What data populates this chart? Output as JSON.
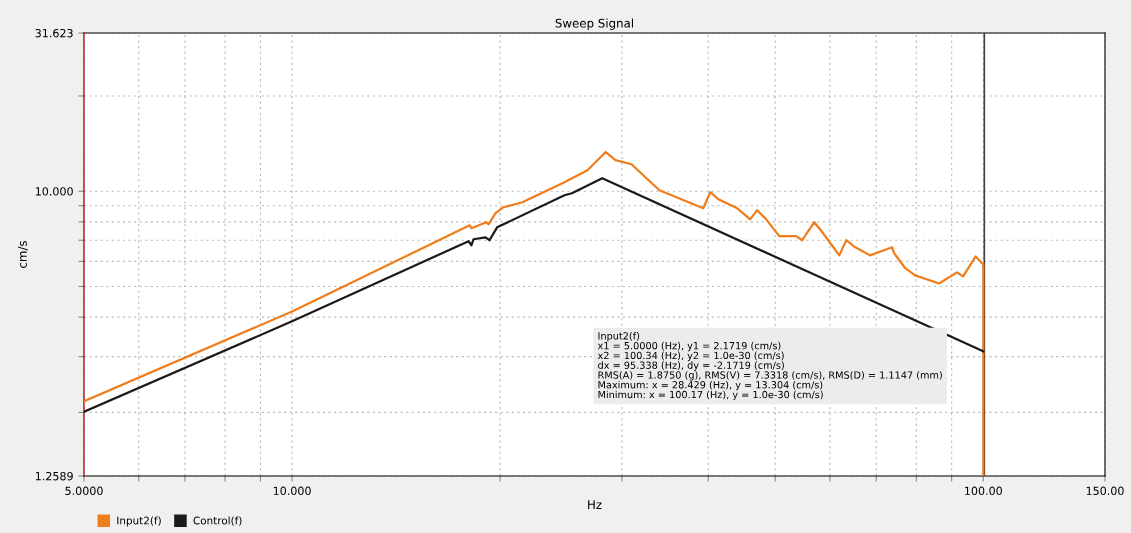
{
  "chart_data": {
    "type": "line",
    "title": "Sweep Signal",
    "xlabel": "Hz",
    "ylabel": "cm/s",
    "log": "xy",
    "grid": true,
    "legend": "bottom",
    "marker": "none",
    "line_style": "solid",
    "xlim": [
      5,
      150
    ],
    "xticks": [
      {
        "value": 5,
        "label": "5.0000"
      },
      {
        "value": 6,
        "label": null
      },
      {
        "value": 7,
        "label": null
      },
      {
        "value": 8,
        "label": null
      },
      {
        "value": 9,
        "label": null
      },
      {
        "value": 10,
        "label": "10.000"
      },
      {
        "value": 20,
        "label": null
      },
      {
        "value": 30,
        "label": null
      },
      {
        "value": 40,
        "label": null
      },
      {
        "value": 50,
        "label": null
      },
      {
        "value": 60,
        "label": null
      },
      {
        "value": 70,
        "label": null
      },
      {
        "value": 80,
        "label": null
      },
      {
        "value": 90,
        "label": null
      },
      {
        "value": 100,
        "label": "100.00"
      },
      {
        "value": 150,
        "label": "150.00"
      }
    ],
    "ylim": [
      1.2589,
      31.623
    ],
    "yticks": [
      {
        "value": 1.2589,
        "label": "1.2589"
      },
      {
        "value": 2,
        "label": null
      },
      {
        "value": 3,
        "label": null
      },
      {
        "value": 4,
        "label": null
      },
      {
        "value": 5,
        "label": null
      },
      {
        "value": 6,
        "label": null
      },
      {
        "value": 7,
        "label": null
      },
      {
        "value": 8,
        "label": null
      },
      {
        "value": 9,
        "label": null
      },
      {
        "value": 10,
        "label": "10.000"
      },
      {
        "value": 20,
        "label": null
      },
      {
        "value": 31.623,
        "label": "31.623"
      }
    ],
    "series": [
      {
        "name": "Input2(f)",
        "color": "#f07d1c",
        "x": [
          5.0,
          10,
          18.07,
          18.18,
          19.1,
          19.24,
          19.69,
          20.23,
          21.54,
          24.78,
          26.75,
          28.43,
          29.37,
          30.98,
          33.99,
          39.35,
          40.27,
          41.38,
          44.06,
          46.0,
          47.09,
          48.52,
          50.67,
          53.6,
          54.7,
          56.96,
          58.5,
          61.9,
          63.35,
          65.3,
          68.6,
          73.8,
          74.3,
          77.1,
          79.7,
          86.3,
          91.6,
          93.5,
          97.5,
          100,
          100
        ],
        "values": [
          2.17,
          4.17,
          7.8,
          7.64,
          7.98,
          7.86,
          8.52,
          8.9,
          9.23,
          10.68,
          11.65,
          13.3,
          12.54,
          12.17,
          10.07,
          8.83,
          9.93,
          9.43,
          8.83,
          8.15,
          8.71,
          8.15,
          7.21,
          7.21,
          7.0,
          7.98,
          7.42,
          6.27,
          7.0,
          6.65,
          6.27,
          6.65,
          6.37,
          5.71,
          5.42,
          5.11,
          5.54,
          5.38,
          6.22,
          5.87,
          1.2589
        ]
      },
      {
        "name": "Control(f)",
        "color": "#1a1a1a",
        "x": [
          5.0,
          10,
          18.0,
          18.18,
          18.3,
          19.05,
          19.3,
          19.8,
          24.78,
          25.4,
          28.1,
          100
        ],
        "values": [
          2.01,
          3.88,
          6.95,
          6.75,
          7.05,
          7.15,
          7.0,
          7.69,
          9.71,
          9.85,
          10.99,
          3.12
        ]
      }
    ],
    "ref_lines": [
      {
        "axis": "x",
        "value": 5.0,
        "color": "#e05a5a"
      },
      {
        "axis": "x",
        "value": 100.34,
        "color": "#404040"
      }
    ],
    "annotations": [
      "Input2(f)",
      "x1 = 5.0000 (Hz), y1 = 2.1719 (cm/s)",
      "x2 = 100.34 (Hz), y2 = 1.0e-30 (cm/s)",
      "dx = 95.338 (Hz), dy = -2.1719 (cm/s)",
      "RMS(A) = 1.8750 (g), RMS(V) = 7.3318 (cm/s), RMS(D) = 1.1147 (mm)",
      "Maximum: x = 28.429 (Hz), y = 13.304 (cm/s)",
      "Minimum: x = 100.17 (Hz), y = 1.0e-30 (cm/s)"
    ]
  }
}
